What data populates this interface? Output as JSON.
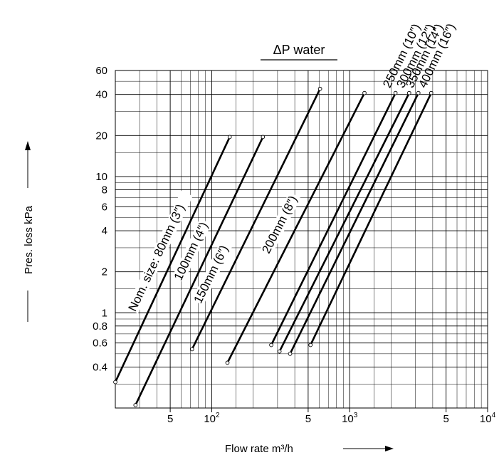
{
  "chart_data": {
    "type": "line",
    "title": "ΔP water",
    "xlabel": "Flow rate m³/h",
    "ylabel": "Pres. loss kPa",
    "x_scale": "log",
    "y_scale": "log",
    "xlim": [
      20,
      10000
    ],
    "ylim": [
      0.2,
      60
    ],
    "x_ticks": [
      {
        "value": 50,
        "label": "5"
      },
      {
        "value": 100,
        "label": "10",
        "exp": "2"
      },
      {
        "value": 500,
        "label": "5"
      },
      {
        "value": 1000,
        "label": "10",
        "exp": "3"
      },
      {
        "value": 5000,
        "label": "5"
      },
      {
        "value": 10000,
        "label": "10",
        "exp": "4"
      }
    ],
    "y_ticks": [
      {
        "value": 0.4,
        "label": "0.4"
      },
      {
        "value": 0.6,
        "label": "0.6"
      },
      {
        "value": 0.8,
        "label": "0.8"
      },
      {
        "value": 1,
        "label": "1"
      },
      {
        "value": 2,
        "label": "2"
      },
      {
        "value": 4,
        "label": "4"
      },
      {
        "value": 6,
        "label": "6"
      },
      {
        "value": 8,
        "label": "8"
      },
      {
        "value": 10,
        "label": "10"
      },
      {
        "value": 20,
        "label": "20"
      },
      {
        "value": 40,
        "label": "40"
      },
      {
        "value": 60,
        "label": "60"
      }
    ],
    "grid": true,
    "series": [
      {
        "name": "Nom. size: 80mm (3″)",
        "x": [
          20,
          135
        ],
        "y": [
          0.31,
          19.5
        ]
      },
      {
        "name": "100mm (4″)",
        "x": [
          28,
          235
        ],
        "y": [
          0.21,
          19.5
        ]
      },
      {
        "name": "150mm (6″)",
        "x": [
          72,
          610
        ],
        "y": [
          0.54,
          44
        ]
      },
      {
        "name": "200mm (8″)",
        "x": [
          130,
          1280
        ],
        "y": [
          0.43,
          41
        ]
      },
      {
        "name": "250mm (10″)",
        "x": [
          270,
          2150
        ],
        "y": [
          0.58,
          41
        ]
      },
      {
        "name": "300mm (12″)",
        "x": [
          310,
          2700
        ],
        "y": [
          0.52,
          41
        ]
      },
      {
        "name": "350mm (14″)",
        "x": [
          370,
          3150
        ],
        "y": [
          0.5,
          41
        ]
      },
      {
        "name": "400mm (16″)",
        "x": [
          520,
          3900
        ],
        "y": [
          0.58,
          41
        ]
      }
    ]
  }
}
